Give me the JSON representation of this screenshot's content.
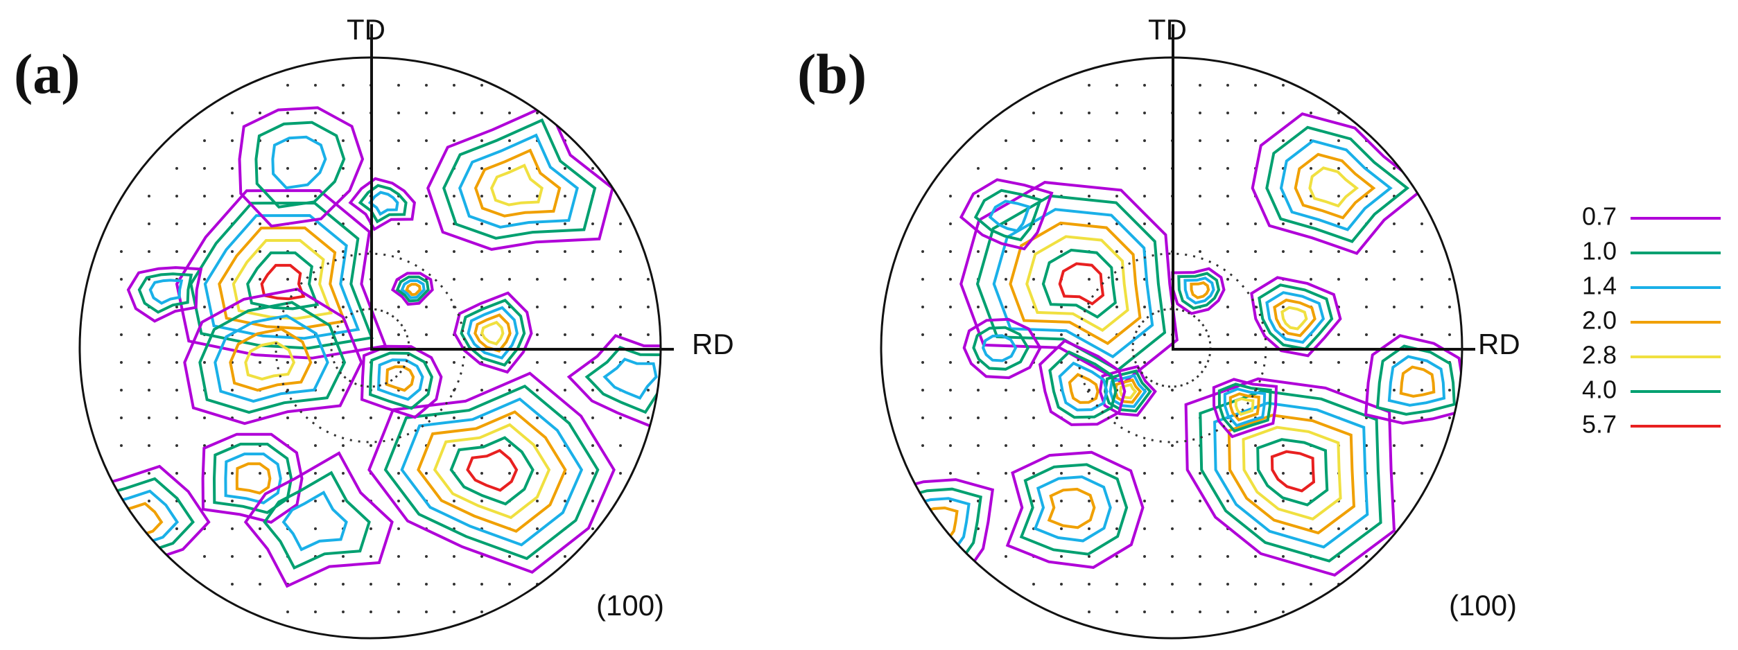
{
  "panels": [
    {
      "label": "(a)",
      "td": "TD",
      "rd": "RD",
      "plane": "(100)"
    },
    {
      "label": "(b)",
      "td": "TD",
      "rd": "RD",
      "plane": "(100)"
    }
  ],
  "legend": [
    {
      "label": "0.7",
      "color": "#b000d8"
    },
    {
      "label": "1.0",
      "color": "#00a070"
    },
    {
      "label": "1.4",
      "color": "#1ab0e8"
    },
    {
      "label": "2.0",
      "color": "#f0a000"
    },
    {
      "label": "2.8",
      "color": "#f0e040"
    },
    {
      "label": "4.0",
      "color": "#00a070"
    },
    {
      "label": "5.7",
      "color": "#e82020"
    }
  ]
}
